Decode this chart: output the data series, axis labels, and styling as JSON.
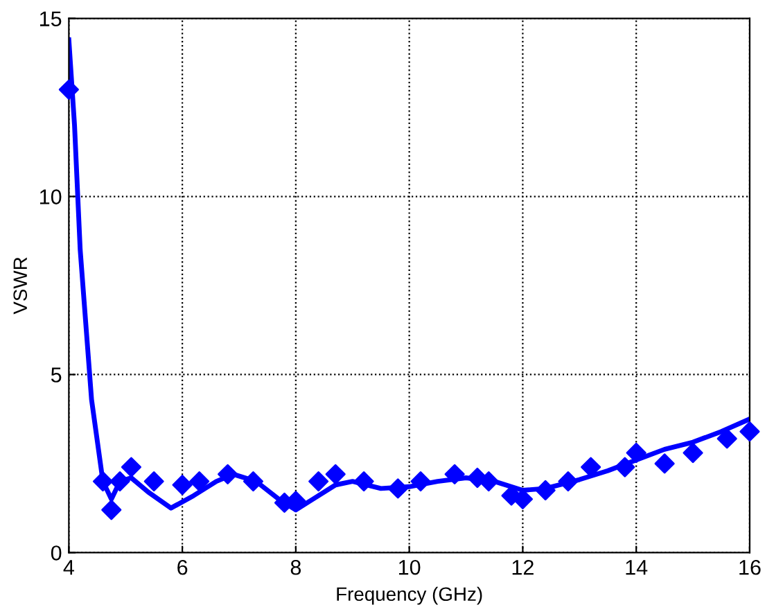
{
  "chart_data": {
    "type": "line",
    "xlabel": "Frequency (GHz)",
    "ylabel": "VSWR",
    "xlim": [
      4,
      16
    ],
    "xticks": [
      4,
      6,
      8,
      10,
      12,
      14,
      16
    ],
    "ylim": [
      0,
      15
    ],
    "yticks": [
      0,
      5,
      10,
      15
    ],
    "grid": true,
    "series": [
      {
        "color": "#0000ff",
        "line_style": "solid",
        "marker": "none",
        "x": [
          4,
          4.1,
          4.2,
          4.4,
          4.6,
          4.75,
          4.9,
          5.1,
          5.4,
          5.8,
          6.2,
          6.6,
          6.9,
          7.3,
          7.7,
          8.0,
          8.3,
          8.7,
          9.0,
          9.5,
          10.0,
          10.5,
          11.0,
          11.5,
          12.0,
          12.4,
          13.0,
          13.5,
          14.0,
          14.5,
          15.0,
          15.5,
          16
        ],
        "values": [
          14.4,
          12,
          8.5,
          4.3,
          2.0,
          1.5,
          2.0,
          2.1,
          1.7,
          1.25,
          1.6,
          2.0,
          2.2,
          2.0,
          1.5,
          1.2,
          1.5,
          1.9,
          2.0,
          1.8,
          1.85,
          2.0,
          2.1,
          2.0,
          1.75,
          1.8,
          2.05,
          2.3,
          2.6,
          2.9,
          3.1,
          3.4,
          3.75
        ]
      },
      {
        "type": "scatter",
        "color": "#0000ff",
        "marker": "diamond",
        "x": [
          4,
          4.6,
          4.75,
          4.9,
          5.1,
          5.5,
          6.0,
          6.3,
          6.8,
          7.25,
          7.8,
          8.0,
          8.4,
          8.7,
          9.2,
          9.8,
          10.2,
          10.8,
          11.2,
          11.4,
          11.8,
          12.0,
          12.4,
          12.8,
          13.2,
          13.8,
          14.0,
          14.5,
          15.0,
          15.6,
          16
        ],
        "values": [
          13,
          2.0,
          1.2,
          2.0,
          2.4,
          2.0,
          1.9,
          2.0,
          2.2,
          2.0,
          1.4,
          1.45,
          2.0,
          2.2,
          2.0,
          1.8,
          2.0,
          2.2,
          2.1,
          2.0,
          1.6,
          1.5,
          1.75,
          2.0,
          2.4,
          2.4,
          2.8,
          2.5,
          2.8,
          3.2,
          3.4
        ]
      }
    ]
  }
}
